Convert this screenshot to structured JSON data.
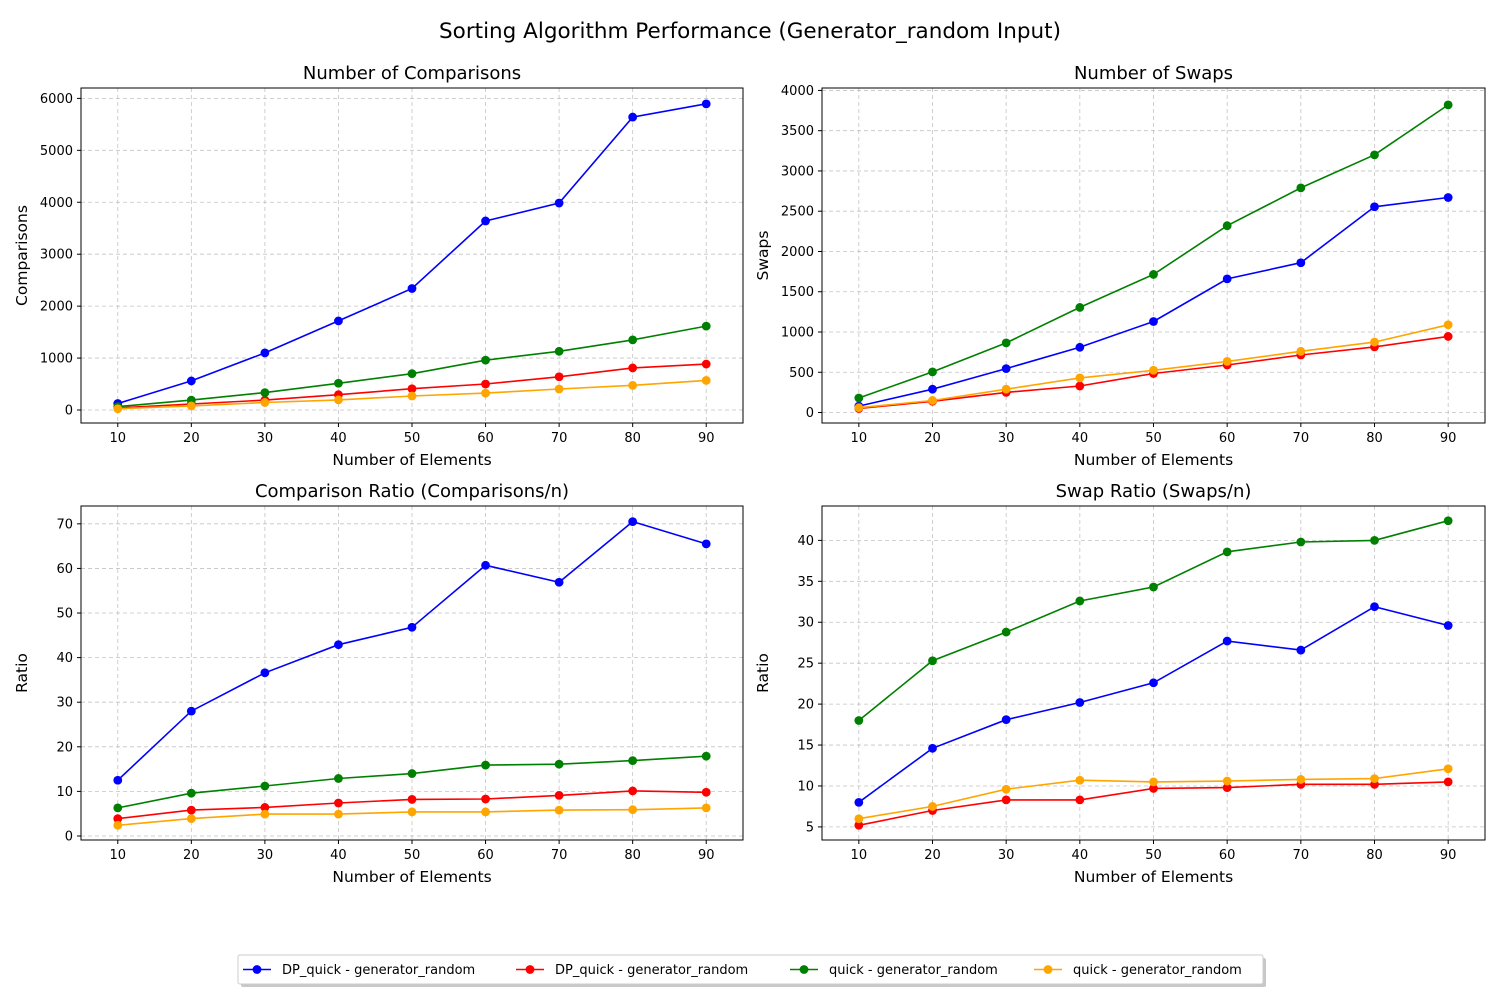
{
  "figure": {
    "suptitle": "Sorting Algorithm Performance (Generator_random Input)"
  },
  "colors": {
    "blue": "#0000ff",
    "red": "#ff0000",
    "green": "#008000",
    "orange": "#ffa500",
    "grid": "#b0b0b0"
  },
  "legend": {
    "placement": "bottom-center",
    "entries": [
      {
        "label": "DP_quick - generator_random",
        "color": "#0000ff"
      },
      {
        "label": "DP_quick - generator_random",
        "color": "#ff0000"
      },
      {
        "label": "quick - generator_random",
        "color": "#008000"
      },
      {
        "label": "quick - generator_random",
        "color": "#ffa500"
      }
    ]
  },
  "chart_data": [
    {
      "type": "line",
      "title": "Number of Comparisons",
      "xlabel": "Number of Elements",
      "ylabel": "Comparisons",
      "grid": true,
      "x": [
        10,
        20,
        30,
        40,
        50,
        60,
        70,
        80,
        90
      ],
      "xlim": [
        5,
        95
      ],
      "ylim": [
        -250,
        6200
      ],
      "yticks": [
        0,
        1000,
        2000,
        3000,
        4000,
        5000,
        6000
      ],
      "series": [
        {
          "name": "DP_quick - generator_random",
          "color": "#0000ff",
          "values": [
            125,
            560,
            1100,
            1715,
            2340,
            3640,
            3985,
            5640,
            5895
          ]
        },
        {
          "name": "DP_quick - generator_random",
          "color": "#ff0000",
          "values": [
            40,
            115,
            190,
            295,
            410,
            500,
            640,
            810,
            885
          ]
        },
        {
          "name": "quick - generator_random",
          "color": "#008000",
          "values": [
            65,
            190,
            335,
            515,
            700,
            960,
            1130,
            1350,
            1615
          ]
        },
        {
          "name": "quick - generator_random",
          "color": "#ffa500",
          "values": [
            25,
            80,
            145,
            195,
            270,
            325,
            405,
            475,
            570
          ]
        }
      ]
    },
    {
      "type": "line",
      "title": "Number of Swaps",
      "xlabel": "Number of Elements",
      "ylabel": "Swaps",
      "grid": true,
      "x": [
        10,
        20,
        30,
        40,
        50,
        60,
        70,
        80,
        90
      ],
      "xlim": [
        5,
        95
      ],
      "ylim": [
        -130,
        4030
      ],
      "yticks": [
        0,
        500,
        1000,
        1500,
        2000,
        2500,
        3000,
        3500,
        4000
      ],
      "series": [
        {
          "name": "DP_quick - generator_random",
          "color": "#0000ff",
          "values": [
            80,
            290,
            545,
            810,
            1130,
            1660,
            1860,
            2555,
            2670
          ]
        },
        {
          "name": "DP_quick - generator_random",
          "color": "#ff0000",
          "values": [
            50,
            140,
            250,
            330,
            485,
            590,
            715,
            815,
            945
          ]
        },
        {
          "name": "quick - generator_random",
          "color": "#008000",
          "values": [
            180,
            505,
            865,
            1305,
            1715,
            2320,
            2790,
            3200,
            3820
          ]
        },
        {
          "name": "quick - generator_random",
          "color": "#ffa500",
          "values": [
            60,
            150,
            290,
            430,
            525,
            635,
            760,
            875,
            1090
          ]
        }
      ]
    },
    {
      "type": "line",
      "title": "Comparison Ratio (Comparisons/n)",
      "xlabel": "Number of Elements",
      "ylabel": "Ratio",
      "grid": true,
      "x": [
        10,
        20,
        30,
        40,
        50,
        60,
        70,
        80,
        90
      ],
      "xlim": [
        5,
        95
      ],
      "ylim": [
        -0.9,
        74
      ],
      "yticks": [
        0,
        10,
        20,
        30,
        40,
        50,
        60,
        70
      ],
      "series": [
        {
          "name": "DP_quick - generator_random",
          "color": "#0000ff",
          "values": [
            12.5,
            28.0,
            36.6,
            42.9,
            46.8,
            60.7,
            56.9,
            70.5,
            65.5
          ]
        },
        {
          "name": "DP_quick - generator_random",
          "color": "#ff0000",
          "values": [
            3.9,
            5.8,
            6.4,
            7.4,
            8.2,
            8.3,
            9.1,
            10.1,
            9.8
          ]
        },
        {
          "name": "quick - generator_random",
          "color": "#008000",
          "values": [
            6.3,
            9.6,
            11.2,
            12.9,
            14.0,
            15.9,
            16.1,
            16.9,
            17.9
          ]
        },
        {
          "name": "quick - generator_random",
          "color": "#ffa500",
          "values": [
            2.4,
            3.9,
            4.9,
            4.9,
            5.4,
            5.4,
            5.8,
            5.9,
            6.3
          ]
        }
      ]
    },
    {
      "type": "line",
      "title": "Swap Ratio (Swaps/n)",
      "xlabel": "Number of Elements",
      "ylabel": "Ratio",
      "grid": true,
      "x": [
        10,
        20,
        30,
        40,
        50,
        60,
        70,
        80,
        90
      ],
      "xlim": [
        5,
        95
      ],
      "ylim": [
        3.4,
        44.2
      ],
      "yticks": [
        5,
        10,
        15,
        20,
        25,
        30,
        35,
        40
      ],
      "series": [
        {
          "name": "DP_quick - generator_random",
          "color": "#0000ff",
          "values": [
            8.0,
            14.6,
            18.1,
            20.2,
            22.6,
            27.7,
            26.6,
            31.9,
            29.6
          ]
        },
        {
          "name": "DP_quick - generator_random",
          "color": "#ff0000",
          "values": [
            5.2,
            7.0,
            8.3,
            8.3,
            9.7,
            9.8,
            10.2,
            10.2,
            10.5
          ]
        },
        {
          "name": "quick - generator_random",
          "color": "#008000",
          "values": [
            18.0,
            25.3,
            28.8,
            32.6,
            34.3,
            38.6,
            39.8,
            40.0,
            42.4
          ]
        },
        {
          "name": "quick - generator_random",
          "color": "#ffa500",
          "values": [
            6.0,
            7.5,
            9.6,
            10.7,
            10.5,
            10.6,
            10.8,
            10.9,
            12.1
          ]
        }
      ]
    }
  ]
}
